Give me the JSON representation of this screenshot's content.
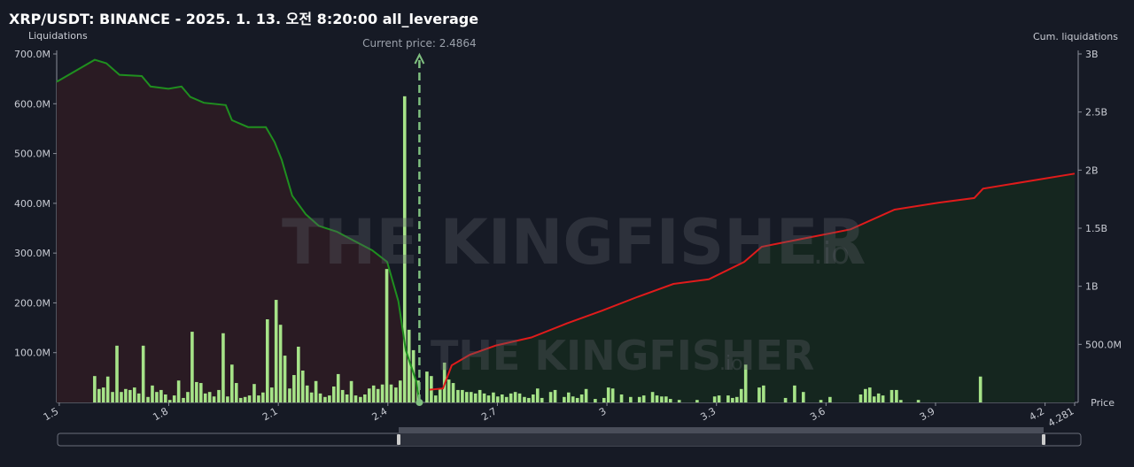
{
  "chart_data": {
    "type": "bar",
    "title": "XRP/USDT: BINANCE - 2025. 1. 13. 오전 8:20:00 all_leverage",
    "y_label": "Liquidations",
    "y2_label": "Cum. liquidations",
    "x_label": "Price",
    "watermark": "THE KINGFISHER",
    "watermark_suffix": ".io",
    "current_price": {
      "value": 2.4864,
      "label": "Current price: 2.4864"
    },
    "xlim": [
      1.493,
      4.281
    ],
    "xticks": [
      1.5,
      1.8,
      2.1,
      2.4,
      2.7,
      3,
      3.3,
      3.6,
      3.9,
      4.2,
      4.281
    ],
    "ylim": [
      0,
      700
    ],
    "yticks": [
      {
        "value": 100,
        "label": "100.0M"
      },
      {
        "value": 200,
        "label": "200.0M"
      },
      {
        "value": 300,
        "label": "300.0M"
      },
      {
        "value": 400,
        "label": "400.0M"
      },
      {
        "value": 500,
        "label": "500.0M"
      },
      {
        "value": 600,
        "label": "600.0M"
      },
      {
        "value": 700,
        "label": "700.0M"
      }
    ],
    "y2lim": [
      0,
      3
    ],
    "y2ticks": [
      {
        "value": 0.5,
        "label": "500.0M"
      },
      {
        "value": 1,
        "label": "1B"
      },
      {
        "value": 1.5,
        "label": "1.5B"
      },
      {
        "value": 2,
        "label": "2B"
      },
      {
        "value": 2.5,
        "label": "2.5B"
      },
      {
        "value": 3,
        "label": "3B"
      }
    ],
    "bars": {
      "color": "#a6e388",
      "x": [
        1.597,
        1.609,
        1.621,
        1.633,
        1.646,
        1.658,
        1.67,
        1.682,
        1.694,
        1.706,
        1.718,
        1.73,
        1.743,
        1.755,
        1.767,
        1.779,
        1.791,
        1.803,
        1.815,
        1.827,
        1.84,
        1.852,
        1.864,
        1.876,
        1.888,
        1.9,
        1.912,
        1.924,
        1.937,
        1.949,
        1.961,
        1.973,
        1.985,
        1.997,
        2.009,
        2.021,
        2.034,
        2.046,
        2.058,
        2.07,
        2.082,
        2.094,
        2.106,
        2.118,
        2.131,
        2.143,
        2.155,
        2.167,
        2.179,
        2.191,
        2.203,
        2.215,
        2.228,
        2.24,
        2.252,
        2.264,
        2.276,
        2.288,
        2.3,
        2.312,
        2.325,
        2.337,
        2.349,
        2.361,
        2.373,
        2.385,
        2.397,
        2.409,
        2.422,
        2.434,
        2.446,
        2.458,
        2.47,
        2.483,
        2.507,
        2.519,
        2.531,
        2.543,
        2.555,
        2.567,
        2.579,
        2.592,
        2.604,
        2.616,
        2.628,
        2.64,
        2.652,
        2.664,
        2.676,
        2.689,
        2.701,
        2.713,
        2.725,
        2.737,
        2.749,
        2.761,
        2.774,
        2.786,
        2.798,
        2.81,
        2.822,
        2.846,
        2.858,
        2.883,
        2.895,
        2.907,
        2.919,
        2.931,
        2.943,
        2.968,
        2.992,
        3.004,
        3.016,
        3.04,
        3.065,
        3.089,
        3.101,
        3.125,
        3.137,
        3.15,
        3.162,
        3.174,
        3.198,
        3.247,
        3.295,
        3.307,
        3.332,
        3.344,
        3.356,
        3.368,
        3.38,
        3.417,
        3.429,
        3.489,
        3.514,
        3.538,
        3.586,
        3.611,
        3.695,
        3.708,
        3.72,
        3.732,
        3.744,
        3.756,
        3.78,
        3.793,
        3.805,
        3.853,
        4.023
      ],
      "values": [
        53,
        27,
        30,
        52,
        21,
        114,
        21,
        27,
        25,
        30,
        18,
        114,
        11,
        34,
        21,
        25,
        16,
        5,
        14,
        44,
        9,
        21,
        142,
        41,
        39,
        18,
        21,
        12,
        25,
        139,
        12,
        76,
        39,
        9,
        11,
        14,
        37,
        14,
        20,
        167,
        30,
        206,
        156,
        94,
        28,
        55,
        112,
        64,
        34,
        20,
        43,
        18,
        11,
        14,
        32,
        57,
        25,
        16,
        43,
        14,
        11,
        16,
        28,
        34,
        27,
        36,
        268,
        36,
        30,
        44,
        615,
        146,
        105,
        44,
        62,
        53,
        14,
        27,
        80,
        46,
        39,
        25,
        25,
        21,
        21,
        18,
        25,
        18,
        14,
        20,
        12,
        16,
        11,
        18,
        21,
        18,
        11,
        9,
        16,
        28,
        9,
        21,
        25,
        11,
        20,
        12,
        9,
        16,
        27,
        7,
        9,
        30,
        28,
        16,
        11,
        11,
        14,
        21,
        14,
        12,
        12,
        7,
        5,
        5,
        12,
        14,
        14,
        9,
        11,
        27,
        76,
        30,
        34,
        9,
        34,
        21,
        5,
        11,
        16,
        27,
        30,
        12,
        18,
        14,
        25,
        25,
        5,
        5,
        52
      ]
    },
    "series": [
      {
        "axis": "y2",
        "color": "#1f8f1f",
        "fill": "#2a1b23",
        "x": [
          1.493,
          1.597,
          1.629,
          1.665,
          1.726,
          1.75,
          1.799,
          1.835,
          1.859,
          1.896,
          1.956,
          1.973,
          2.017,
          2.066,
          2.09,
          2.109,
          2.138,
          2.175,
          2.211,
          2.26,
          2.308,
          2.357,
          2.398,
          2.429,
          2.449,
          2.478,
          2.4864
        ],
        "values": [
          2.76,
          2.95,
          2.92,
          2.82,
          2.81,
          2.72,
          2.7,
          2.72,
          2.63,
          2.58,
          2.56,
          2.43,
          2.37,
          2.37,
          2.24,
          2.09,
          1.78,
          1.62,
          1.52,
          1.47,
          1.39,
          1.31,
          1.21,
          0.87,
          0.45,
          0.18,
          0
        ]
      },
      {
        "axis": "y2",
        "color": "#e01b1b",
        "fill": "#15261f",
        "x": [
          2.514,
          2.551,
          2.575,
          2.624,
          2.696,
          2.793,
          2.89,
          2.987,
          3.085,
          3.182,
          3.279,
          3.376,
          3.424,
          3.521,
          3.667,
          3.788,
          3.909,
          4.006,
          4.03,
          4.281
        ],
        "values": [
          0.11,
          0.12,
          0.32,
          0.41,
          0.49,
          0.56,
          0.68,
          0.79,
          0.91,
          1.02,
          1.06,
          1.21,
          1.34,
          1.4,
          1.49,
          1.66,
          1.72,
          1.76,
          1.84,
          1.97
        ]
      }
    ]
  }
}
